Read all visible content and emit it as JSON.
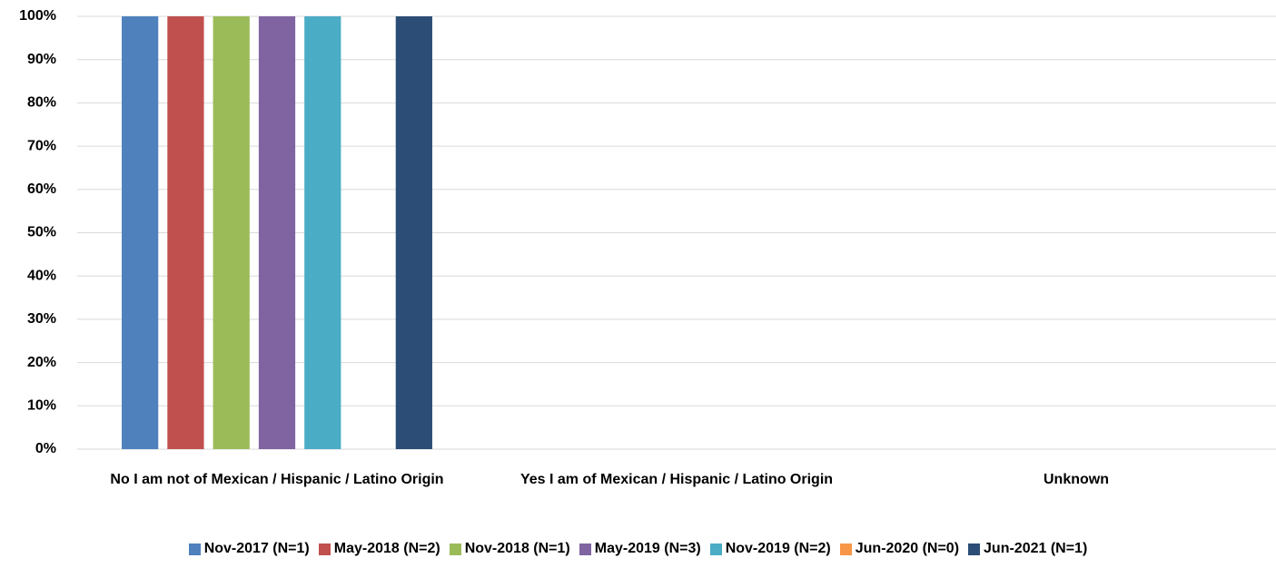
{
  "chart_data": {
    "type": "bar",
    "categories": [
      "No I am not of Mexican / Hispanic / Latino Origin",
      "Yes I am of Mexican / Hispanic / Latino Origin",
      "Unknown"
    ],
    "series": [
      {
        "name": "Nov-2017 (N=1)",
        "color": "#4f81bd",
        "values": [
          100,
          0,
          0
        ]
      },
      {
        "name": "May-2018 (N=2)",
        "color": "#c0504d",
        "values": [
          100,
          0,
          0
        ]
      },
      {
        "name": "Nov-2018 (N=1)",
        "color": "#9bbb59",
        "values": [
          100,
          0,
          0
        ]
      },
      {
        "name": "May-2019 (N=3)",
        "color": "#8064a2",
        "values": [
          100,
          0,
          0
        ]
      },
      {
        "name": "Nov-2019 (N=2)",
        "color": "#4bacc6",
        "values": [
          100,
          0,
          0
        ]
      },
      {
        "name": "Jun-2020 (N=0)",
        "color": "#f79646",
        "values": [
          0,
          0,
          0
        ]
      },
      {
        "name": "Jun-2021 (N=1)",
        "color": "#2c4d75",
        "values": [
          100,
          0,
          0
        ]
      }
    ],
    "ylim": [
      0,
      100
    ],
    "yticks": [
      {
        "value": 0,
        "label": "0%"
      },
      {
        "value": 10,
        "label": "10%"
      },
      {
        "value": 20,
        "label": "20%"
      },
      {
        "value": 30,
        "label": "30%"
      },
      {
        "value": 40,
        "label": "40%"
      },
      {
        "value": 50,
        "label": "50%"
      },
      {
        "value": 60,
        "label": "60%"
      },
      {
        "value": 70,
        "label": "70%"
      },
      {
        "value": 80,
        "label": "80%"
      },
      {
        "value": 90,
        "label": "90%"
      },
      {
        "value": 100,
        "label": "100%"
      }
    ],
    "grid": true,
    "legend": "bottom"
  }
}
